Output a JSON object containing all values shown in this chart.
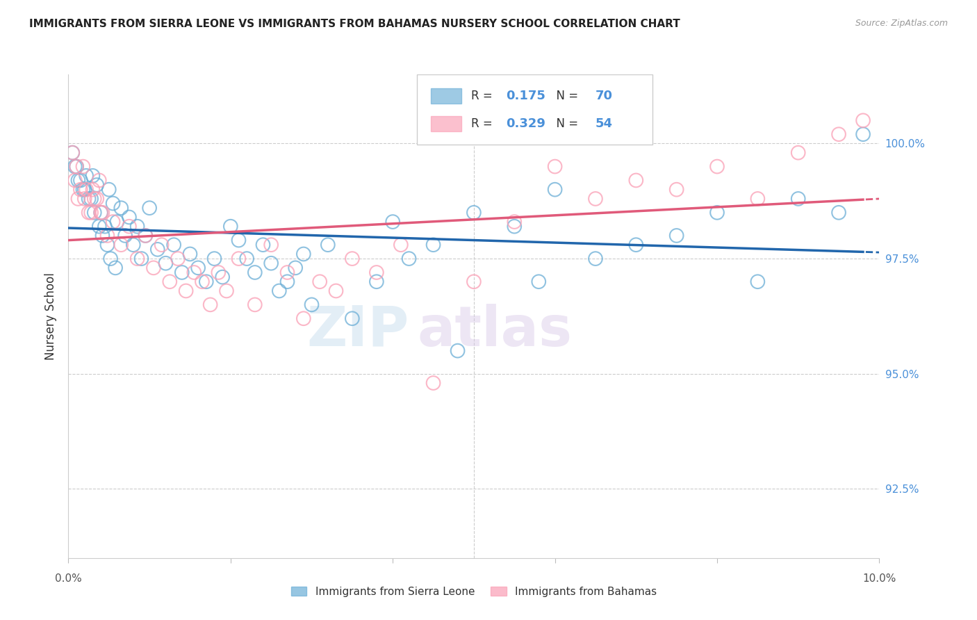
{
  "title": "IMMIGRANTS FROM SIERRA LEONE VS IMMIGRANTS FROM BAHAMAS NURSERY SCHOOL CORRELATION CHART",
  "source": "Source: ZipAtlas.com",
  "ylabel": "Nursery School",
  "legend_blue_r": "0.175",
  "legend_blue_n": "70",
  "legend_pink_r": "0.329",
  "legend_pink_n": "54",
  "y_ticks": [
    92.5,
    95.0,
    97.5,
    100.0
  ],
  "y_tick_labels": [
    "92.5%",
    "95.0%",
    "97.5%",
    "100.0%"
  ],
  "x_range": [
    0.0,
    10.0
  ],
  "y_range": [
    91.0,
    101.5
  ],
  "blue_color": "#6baed6",
  "pink_color": "#fa9fb5",
  "blue_line_color": "#2166ac",
  "pink_line_color": "#e05a7a",
  "watermark_zip": "ZIP",
  "watermark_atlas": "atlas",
  "blue_scatter_x": [
    0.1,
    0.15,
    0.2,
    0.25,
    0.3,
    0.35,
    0.4,
    0.45,
    0.5,
    0.55,
    0.6,
    0.65,
    0.7,
    0.75,
    0.8,
    0.85,
    0.9,
    0.95,
    1.0,
    1.1,
    1.2,
    1.3,
    1.4,
    1.5,
    1.6,
    1.7,
    1.8,
    1.9,
    2.0,
    2.1,
    2.2,
    2.3,
    2.4,
    2.5,
    2.6,
    2.7,
    2.8,
    2.9,
    3.0,
    3.2,
    3.5,
    3.8,
    4.0,
    4.2,
    4.5,
    4.8,
    5.0,
    5.5,
    5.8,
    6.0,
    6.5,
    7.0,
    7.5,
    8.0,
    8.5,
    9.0,
    9.5,
    9.8,
    0.05,
    0.08,
    0.12,
    0.18,
    0.22,
    0.28,
    0.32,
    0.38,
    0.42,
    0.48,
    0.52,
    0.58
  ],
  "blue_scatter_y": [
    99.5,
    99.2,
    99.0,
    98.8,
    99.3,
    99.1,
    98.5,
    98.2,
    99.0,
    98.7,
    98.3,
    98.6,
    98.0,
    98.4,
    97.8,
    98.2,
    97.5,
    98.0,
    98.6,
    97.7,
    97.4,
    97.8,
    97.2,
    97.6,
    97.3,
    97.0,
    97.5,
    97.1,
    98.2,
    97.9,
    97.5,
    97.2,
    97.8,
    97.4,
    96.8,
    97.0,
    97.3,
    97.6,
    96.5,
    97.8,
    96.2,
    97.0,
    98.3,
    97.5,
    97.8,
    95.5,
    98.5,
    98.2,
    97.0,
    99.0,
    97.5,
    97.8,
    98.0,
    98.5,
    97.0,
    98.8,
    98.5,
    100.2,
    99.8,
    99.5,
    99.2,
    99.0,
    99.3,
    98.8,
    98.5,
    98.2,
    98.0,
    97.8,
    97.5,
    97.3
  ],
  "pink_scatter_x": [
    0.08,
    0.12,
    0.18,
    0.22,
    0.28,
    0.32,
    0.38,
    0.42,
    0.48,
    0.55,
    0.65,
    0.75,
    0.85,
    0.95,
    1.05,
    1.15,
    1.25,
    1.35,
    1.45,
    1.55,
    1.65,
    1.75,
    1.85,
    1.95,
    2.1,
    2.3,
    2.5,
    2.7,
    2.9,
    3.1,
    3.3,
    3.5,
    3.8,
    4.1,
    4.5,
    5.0,
    5.5,
    6.0,
    6.5,
    7.0,
    7.5,
    8.0,
    8.5,
    9.0,
    9.5,
    9.8,
    0.05,
    0.1,
    0.15,
    0.2,
    0.25,
    0.3,
    0.35,
    0.4
  ],
  "pink_scatter_y": [
    99.2,
    98.8,
    99.5,
    99.0,
    98.5,
    98.8,
    99.2,
    98.5,
    98.0,
    98.3,
    97.8,
    98.2,
    97.5,
    98.0,
    97.3,
    97.8,
    97.0,
    97.5,
    96.8,
    97.2,
    97.0,
    96.5,
    97.2,
    96.8,
    97.5,
    96.5,
    97.8,
    97.2,
    96.2,
    97.0,
    96.8,
    97.5,
    97.2,
    97.8,
    94.8,
    97.0,
    98.3,
    99.5,
    98.8,
    99.2,
    99.0,
    99.5,
    98.8,
    99.8,
    100.2,
    100.5,
    99.8,
    99.5,
    99.0,
    98.8,
    98.5,
    99.0,
    98.8,
    98.5
  ]
}
